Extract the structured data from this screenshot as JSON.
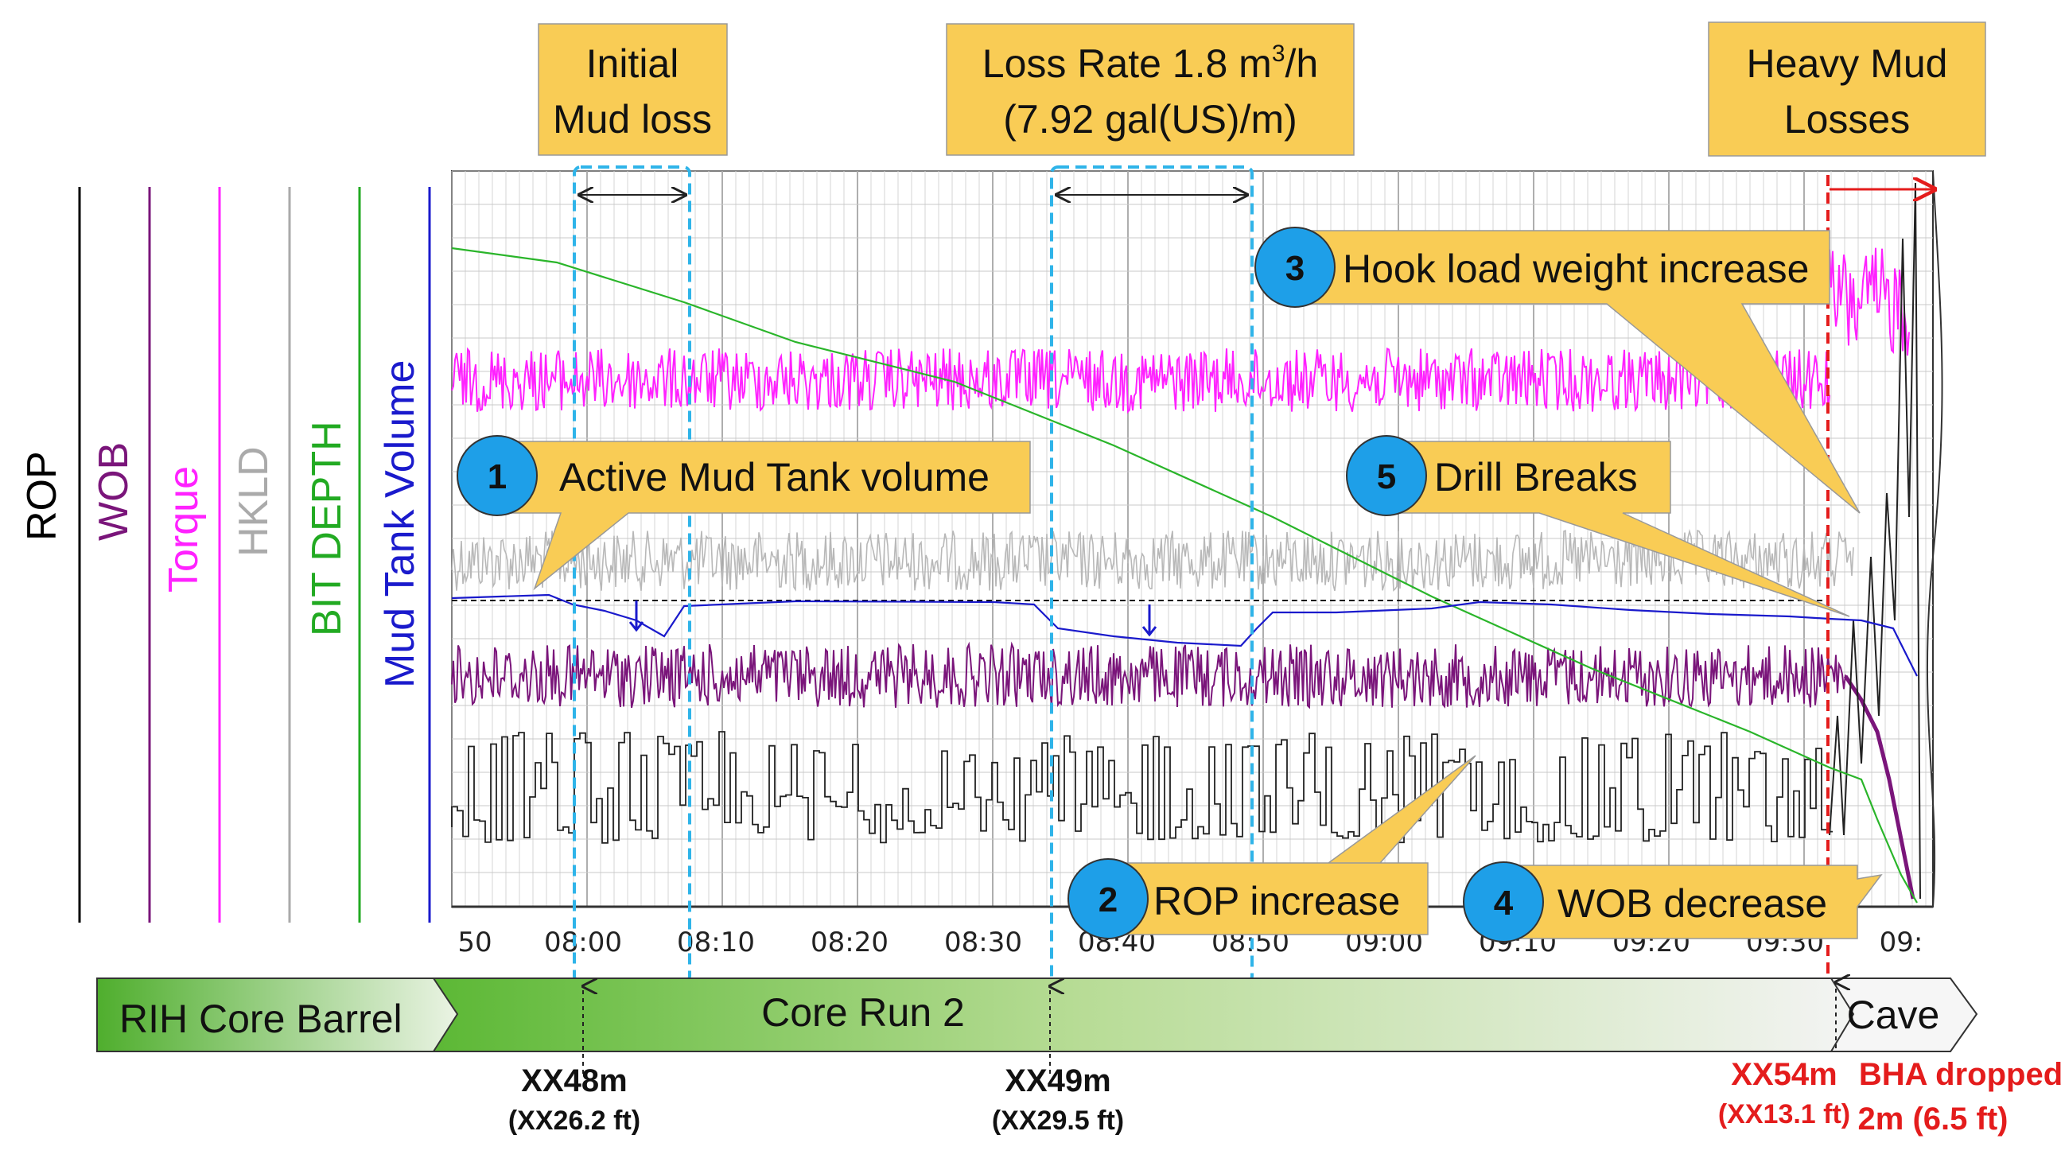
{
  "chart_data": {
    "type": "line",
    "x_tick_labels": [
      "50",
      "08:00",
      "08:10",
      "08:20",
      "08:30",
      "08:40",
      "08:50",
      "09:00",
      "09:10",
      "09:20",
      "09:30",
      "09:"
    ],
    "tracks": [
      {
        "name": "ROP",
        "color": "#000000"
      },
      {
        "name": "WOB",
        "color": "#7a157a"
      },
      {
        "name": "Torque",
        "color": "#ff22ff"
      },
      {
        "name": "HKLD",
        "color": "#aaaaaa"
      },
      {
        "name": "BIT DEPTH",
        "color": "#22aa22"
      },
      {
        "name": "Mud Tank Volume",
        "color": "#1a1acc"
      }
    ],
    "callouts": {
      "initial_loss": [
        "Initial",
        "Mud loss"
      ],
      "loss_rate_line1_main": "Loss Rate 1.8 m",
      "loss_rate_line1_sup": "3",
      "loss_rate_line1_tail": "/h",
      "loss_rate_line2": "(7.92 gal(US)/m)",
      "heavy_losses": [
        "Heavy Mud",
        "Losses"
      ]
    },
    "markers": [
      {
        "num": "1",
        "label": "Active Mud Tank volume"
      },
      {
        "num": "2",
        "label": "ROP increase"
      },
      {
        "num": "3",
        "label": "Hook load weight increase"
      },
      {
        "num": "4",
        "label": "WOB decrease"
      },
      {
        "num": "5",
        "label": "Drill Breaks"
      }
    ],
    "phases": [
      "RIH Core Barrel",
      "Core Run 2",
      "Cave"
    ],
    "depth_labels": [
      {
        "depth": "XX48m",
        "ft": "(XX26.2 ft)"
      },
      {
        "depth": "XX49m",
        "ft": "(XX29.5 ft)"
      }
    ],
    "event_label": {
      "depth": "XX54m",
      "ft": "(XX13.1 ft)",
      "event_line1": "BHA dropped",
      "event_line2": "2m (6.5 ft)"
    },
    "colors": {
      "callout_fill": "#f9cc55",
      "marker_fill": "#1e9fe8",
      "dashed_box": "#2fb4e9",
      "event_red": "#e41c1c"
    }
  }
}
